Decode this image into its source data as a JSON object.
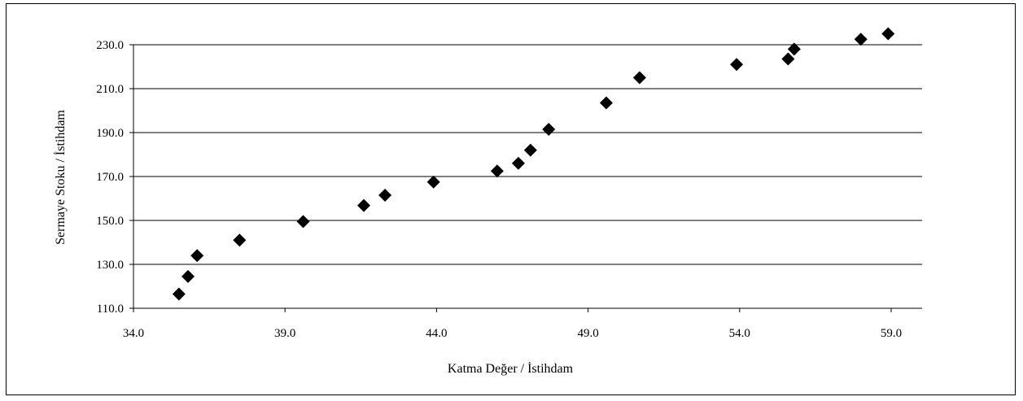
{
  "chart_data": {
    "type": "scatter",
    "title": "",
    "xlabel": "Katma Değer / İstihdam",
    "ylabel": "Sermaye Stoku / İstihdam",
    "xlim": [
      34.0,
      60.0
    ],
    "ylim": [
      110.0,
      235.0
    ],
    "x_ticks": [
      "34.0",
      "39.0",
      "44.0",
      "49.0",
      "54.0",
      "59.0"
    ],
    "y_ticks": [
      "110.0",
      "130.0",
      "150.0",
      "170.0",
      "190.0",
      "210.0",
      "230.0"
    ],
    "grid": "horizontal",
    "marker": "diamond",
    "marker_color": "#000000",
    "points": [
      {
        "x": 35.5,
        "y": 116.5
      },
      {
        "x": 35.8,
        "y": 124.5
      },
      {
        "x": 36.1,
        "y": 134.0
      },
      {
        "x": 37.5,
        "y": 141.0
      },
      {
        "x": 39.6,
        "y": 149.5
      },
      {
        "x": 41.6,
        "y": 156.8
      },
      {
        "x": 42.3,
        "y": 161.5
      },
      {
        "x": 43.9,
        "y": 167.5
      },
      {
        "x": 46.0,
        "y": 172.5
      },
      {
        "x": 46.7,
        "y": 176.0
      },
      {
        "x": 47.1,
        "y": 182.0
      },
      {
        "x": 47.7,
        "y": 191.5
      },
      {
        "x": 49.6,
        "y": 203.5
      },
      {
        "x": 50.7,
        "y": 215.0
      },
      {
        "x": 53.9,
        "y": 221.0
      },
      {
        "x": 55.6,
        "y": 223.5
      },
      {
        "x": 55.8,
        "y": 228.0
      },
      {
        "x": 58.0,
        "y": 232.5
      },
      {
        "x": 58.9,
        "y": 235.0
      }
    ]
  }
}
